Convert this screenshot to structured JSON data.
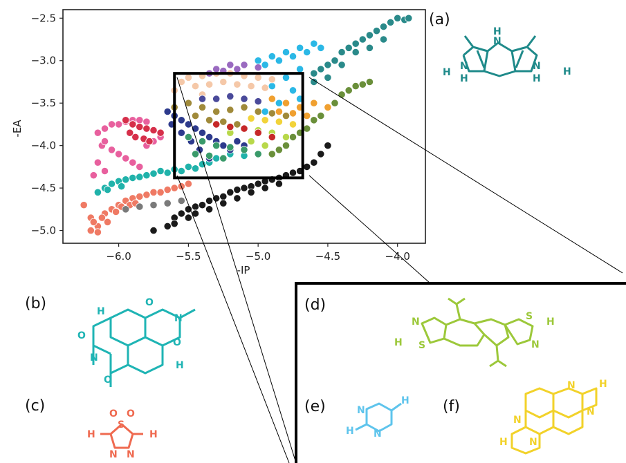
{
  "chart_data": {
    "type": "scatter",
    "title": "",
    "xlabel": "-IP",
    "ylabel": "-EA",
    "xlim": [
      -6.4,
      -3.8
    ],
    "ylim": [
      -5.15,
      -2.4
    ],
    "xticks": [
      -6.0,
      -5.5,
      -5.0,
      -4.5,
      -4.0
    ],
    "xtick_labels": [
      "−6.0",
      "−5.5",
      "−5.0",
      "−4.5",
      "−4.0"
    ],
    "yticks": [
      -2.5,
      -3.0,
      -3.5,
      -4.0,
      -4.5,
      -5.0
    ],
    "ytick_labels": [
      "−2.5",
      "−3.0",
      "−3.5",
      "−4.0",
      "−4.5",
      "−5.0"
    ],
    "grid": false,
    "legend": "none",
    "zoom_box": {
      "x": [
        -5.6,
        -4.68
      ],
      "y": [
        -4.38,
        -3.15
      ]
    },
    "series": [
      {
        "color": "#2a8a8a",
        "points": [
          [
            -4.6,
            -3.25
          ],
          [
            -4.5,
            -3.05
          ],
          [
            -4.4,
            -2.9
          ],
          [
            -4.3,
            -2.8
          ],
          [
            -4.2,
            -2.7
          ],
          [
            -4.1,
            -2.6
          ],
          [
            -4.0,
            -2.5
          ],
          [
            -3.95,
            -2.52
          ],
          [
            -4.05,
            -2.55
          ],
          [
            -4.15,
            -2.65
          ],
          [
            -4.25,
            -2.75
          ],
          [
            -4.35,
            -2.85
          ],
          [
            -4.45,
            -3.0
          ],
          [
            -4.55,
            -3.1
          ],
          [
            -4.3,
            -2.9
          ],
          [
            -4.2,
            -2.85
          ],
          [
            -4.4,
            -3.05
          ],
          [
            -4.1,
            -2.75
          ],
          [
            -4.6,
            -3.15
          ],
          [
            -4.5,
            -3.2
          ],
          [
            -3.92,
            -2.5
          ]
        ]
      },
      {
        "color": "#6a8f3a",
        "points": [
          [
            -4.2,
            -3.25
          ],
          [
            -4.3,
            -3.3
          ],
          [
            -4.4,
            -3.4
          ],
          [
            -4.5,
            -3.55
          ],
          [
            -4.6,
            -3.7
          ],
          [
            -4.7,
            -3.85
          ],
          [
            -4.8,
            -4.0
          ],
          [
            -4.9,
            -4.1
          ],
          [
            -4.45,
            -3.5
          ],
          [
            -4.55,
            -3.65
          ],
          [
            -4.35,
            -3.35
          ],
          [
            -4.25,
            -3.28
          ],
          [
            -4.65,
            -3.8
          ],
          [
            -4.75,
            -3.9
          ],
          [
            -4.85,
            -4.05
          ]
        ]
      },
      {
        "color": "#2bb8e6",
        "points": [
          [
            -5.0,
            -3.0
          ],
          [
            -4.9,
            -2.95
          ],
          [
            -4.8,
            -2.9
          ],
          [
            -4.7,
            -2.85
          ],
          [
            -4.6,
            -2.8
          ],
          [
            -4.95,
            -3.05
          ],
          [
            -4.85,
            -3.0
          ],
          [
            -4.75,
            -2.95
          ],
          [
            -4.65,
            -2.9
          ],
          [
            -4.55,
            -2.85
          ],
          [
            -4.7,
            -3.1
          ],
          [
            -4.8,
            -3.2
          ],
          [
            -4.9,
            -3.3
          ],
          [
            -4.75,
            -3.35
          ],
          [
            -4.85,
            -3.5
          ],
          [
            -4.95,
            -3.6
          ],
          [
            -4.7,
            -3.45
          ]
        ]
      },
      {
        "color": "#ef7a64",
        "points": [
          [
            -6.25,
            -4.7
          ],
          [
            -6.2,
            -4.85
          ],
          [
            -6.15,
            -4.95
          ],
          [
            -6.1,
            -4.8
          ],
          [
            -6.05,
            -4.75
          ],
          [
            -6.0,
            -4.7
          ],
          [
            -5.95,
            -4.65
          ],
          [
            -5.9,
            -4.62
          ],
          [
            -5.85,
            -4.6
          ],
          [
            -5.8,
            -4.58
          ],
          [
            -5.75,
            -4.55
          ],
          [
            -5.7,
            -4.55
          ],
          [
            -5.65,
            -4.52
          ],
          [
            -5.6,
            -4.5
          ],
          [
            -5.55,
            -4.48
          ],
          [
            -5.5,
            -4.45
          ],
          [
            -6.18,
            -4.9
          ],
          [
            -6.12,
            -4.85
          ],
          [
            -6.08,
            -4.9
          ],
          [
            -6.02,
            -4.78
          ],
          [
            -5.98,
            -4.72
          ],
          [
            -6.2,
            -5.0
          ],
          [
            -6.15,
            -5.02
          ],
          [
            -5.92,
            -4.7
          ],
          [
            -5.88,
            -4.68
          ]
        ]
      },
      {
        "color": "#20b2aa",
        "points": [
          [
            -6.1,
            -4.5
          ],
          [
            -6.05,
            -4.45
          ],
          [
            -6.0,
            -4.42
          ],
          [
            -5.95,
            -4.4
          ],
          [
            -5.9,
            -4.38
          ],
          [
            -5.85,
            -4.37
          ],
          [
            -5.8,
            -4.35
          ],
          [
            -5.75,
            -4.33
          ],
          [
            -5.7,
            -4.3
          ],
          [
            -5.65,
            -4.32
          ],
          [
            -5.6,
            -4.28
          ],
          [
            -5.55,
            -4.3
          ],
          [
            -5.5,
            -4.25
          ],
          [
            -5.45,
            -4.27
          ],
          [
            -5.4,
            -4.22
          ],
          [
            -5.35,
            -4.2
          ],
          [
            -6.15,
            -4.55
          ],
          [
            -6.08,
            -4.52
          ],
          [
            -5.98,
            -4.48
          ],
          [
            -5.3,
            -4.15
          ],
          [
            -5.2,
            -4.1
          ],
          [
            -5.1,
            -4.12
          ]
        ]
      },
      {
        "color": "#e8609e",
        "points": [
          [
            -6.15,
            -3.85
          ],
          [
            -6.1,
            -3.8
          ],
          [
            -6.05,
            -3.75
          ],
          [
            -6.0,
            -3.75
          ],
          [
            -5.95,
            -3.72
          ],
          [
            -5.9,
            -3.7
          ],
          [
            -5.85,
            -3.7
          ],
          [
            -5.8,
            -3.72
          ],
          [
            -6.12,
            -4.0
          ],
          [
            -6.05,
            -4.05
          ],
          [
            -6.0,
            -4.1
          ],
          [
            -5.95,
            -4.15
          ],
          [
            -5.9,
            -4.2
          ],
          [
            -5.85,
            -4.25
          ],
          [
            -6.15,
            -4.2
          ],
          [
            -6.1,
            -4.3
          ],
          [
            -5.8,
            -4.0
          ],
          [
            -5.75,
            -3.95
          ],
          [
            -5.7,
            -3.9
          ],
          [
            -6.18,
            -4.35
          ],
          [
            -6.1,
            -3.95
          ]
        ]
      },
      {
        "color": "#d62f4a",
        "points": [
          [
            -5.95,
            -3.7
          ],
          [
            -5.9,
            -3.75
          ],
          [
            -5.85,
            -3.78
          ],
          [
            -5.8,
            -3.8
          ],
          [
            -5.75,
            -3.82
          ],
          [
            -5.7,
            -3.85
          ],
          [
            -5.92,
            -3.85
          ],
          [
            -5.88,
            -3.9
          ],
          [
            -5.82,
            -3.92
          ],
          [
            -5.78,
            -3.95
          ]
        ]
      },
      {
        "color": "#2d3a8c",
        "points": [
          [
            -5.65,
            -3.6
          ],
          [
            -5.6,
            -3.65
          ],
          [
            -5.55,
            -3.7
          ],
          [
            -5.5,
            -3.75
          ],
          [
            -5.45,
            -3.8
          ],
          [
            -5.4,
            -3.85
          ],
          [
            -5.35,
            -3.9
          ],
          [
            -5.3,
            -3.95
          ],
          [
            -5.25,
            -4.0
          ],
          [
            -5.2,
            -4.05
          ],
          [
            -5.62,
            -3.75
          ],
          [
            -5.55,
            -3.85
          ],
          [
            -5.48,
            -3.95
          ],
          [
            -5.42,
            -4.05
          ],
          [
            -5.35,
            -4.15
          ],
          [
            -5.15,
            -3.95
          ],
          [
            -5.1,
            -4.0
          ]
        ]
      },
      {
        "color": "#1a1a1a",
        "points": [
          [
            -5.75,
            -5.0
          ],
          [
            -5.65,
            -4.95
          ],
          [
            -5.6,
            -4.85
          ],
          [
            -5.55,
            -4.8
          ],
          [
            -5.5,
            -4.75
          ],
          [
            -5.45,
            -4.72
          ],
          [
            -5.4,
            -4.7
          ],
          [
            -5.35,
            -4.65
          ],
          [
            -5.3,
            -4.62
          ],
          [
            -5.25,
            -4.6
          ],
          [
            -5.2,
            -4.55
          ],
          [
            -5.15,
            -4.52
          ],
          [
            -5.1,
            -4.5
          ],
          [
            -5.05,
            -4.48
          ],
          [
            -5.0,
            -4.45
          ],
          [
            -4.95,
            -4.42
          ],
          [
            -4.9,
            -4.4
          ],
          [
            -4.85,
            -4.38
          ],
          [
            -4.8,
            -4.35
          ],
          [
            -4.75,
            -4.32
          ],
          [
            -4.7,
            -4.3
          ],
          [
            -4.65,
            -4.25
          ],
          [
            -4.6,
            -4.2
          ],
          [
            -4.55,
            -4.1
          ],
          [
            -4.5,
            -4.0
          ],
          [
            -5.45,
            -4.8
          ],
          [
            -5.35,
            -4.75
          ],
          [
            -5.25,
            -4.68
          ],
          [
            -5.15,
            -4.62
          ],
          [
            -5.05,
            -4.55
          ],
          [
            -4.95,
            -4.5
          ],
          [
            -4.85,
            -4.45
          ],
          [
            -5.6,
            -4.92
          ],
          [
            -5.5,
            -4.85
          ]
        ]
      },
      {
        "color": "#f5c8a8",
        "points": [
          [
            -5.5,
            -3.2
          ],
          [
            -5.4,
            -3.18
          ],
          [
            -5.3,
            -3.15
          ],
          [
            -5.2,
            -3.15
          ],
          [
            -5.1,
            -3.18
          ],
          [
            -5.0,
            -3.2
          ],
          [
            -4.9,
            -3.22
          ],
          [
            -5.45,
            -3.3
          ],
          [
            -5.35,
            -3.28
          ],
          [
            -5.25,
            -3.25
          ],
          [
            -5.15,
            -3.28
          ],
          [
            -5.05,
            -3.3
          ],
          [
            -4.95,
            -3.32
          ],
          [
            -5.55,
            -3.25
          ],
          [
            -5.6,
            -3.35
          ],
          [
            -5.4,
            -3.4
          ]
        ]
      },
      {
        "color": "#9a6ac0",
        "points": [
          [
            -5.3,
            -3.1
          ],
          [
            -5.2,
            -3.05
          ],
          [
            -5.1,
            -3.05
          ],
          [
            -5.0,
            -3.08
          ],
          [
            -5.35,
            -3.15
          ],
          [
            -5.25,
            -3.12
          ],
          [
            -5.15,
            -3.1
          ]
        ]
      },
      {
        "color": "#a08a3a",
        "points": [
          [
            -5.6,
            -3.55
          ],
          [
            -5.5,
            -3.5
          ],
          [
            -5.4,
            -3.55
          ],
          [
            -5.3,
            -3.6
          ],
          [
            -5.2,
            -3.58
          ],
          [
            -5.1,
            -3.55
          ],
          [
            -5.0,
            -3.6
          ],
          [
            -4.9,
            -3.62
          ],
          [
            -4.8,
            -3.65
          ],
          [
            -5.45,
            -3.65
          ],
          [
            -5.35,
            -3.7
          ],
          [
            -5.25,
            -3.72
          ],
          [
            -5.15,
            -3.75
          ]
        ]
      },
      {
        "color": "#3a9a6a",
        "points": [
          [
            -5.5,
            -3.9
          ],
          [
            -5.4,
            -3.95
          ],
          [
            -5.3,
            -4.0
          ],
          [
            -5.2,
            -4.02
          ],
          [
            -5.1,
            -4.05
          ],
          [
            -5.0,
            -4.1
          ],
          [
            -5.45,
            -4.1
          ],
          [
            -5.35,
            -4.12
          ],
          [
            -5.25,
            -4.15
          ]
        ]
      },
      {
        "color": "#f0a030",
        "points": [
          [
            -4.9,
            -3.45
          ],
          [
            -4.8,
            -3.5
          ],
          [
            -4.7,
            -3.55
          ],
          [
            -4.6,
            -3.5
          ],
          [
            -4.5,
            -3.55
          ],
          [
            -4.85,
            -3.6
          ],
          [
            -4.75,
            -3.62
          ],
          [
            -4.65,
            -3.65
          ]
        ]
      },
      {
        "color": "#b8d84a",
        "points": [
          [
            -5.2,
            -3.85
          ],
          [
            -5.1,
            -3.8
          ],
          [
            -5.0,
            -3.82
          ],
          [
            -4.9,
            -3.85
          ],
          [
            -4.8,
            -3.9
          ],
          [
            -5.05,
            -3.95
          ],
          [
            -4.95,
            -4.0
          ]
        ]
      },
      {
        "color": "#7a7a7a",
        "points": [
          [
            -5.95,
            -4.75
          ],
          [
            -5.85,
            -4.72
          ],
          [
            -5.75,
            -4.7
          ],
          [
            -5.65,
            -4.68
          ],
          [
            -5.55,
            -4.65
          ]
        ]
      },
      {
        "color": "#c62828",
        "points": [
          [
            -5.3,
            -3.75
          ],
          [
            -5.2,
            -3.78
          ],
          [
            -5.1,
            -3.8
          ],
          [
            -5.0,
            -3.85
          ],
          [
            -4.9,
            -3.9
          ]
        ]
      },
      {
        "color": "#4a4a9a",
        "points": [
          [
            -5.4,
            -3.45
          ],
          [
            -5.3,
            -3.45
          ],
          [
            -5.2,
            -3.42
          ],
          [
            -5.1,
            -3.45
          ],
          [
            -5.0,
            -3.48
          ]
        ]
      },
      {
        "color": "#f2d33a",
        "points": [
          [
            -4.95,
            -3.7
          ],
          [
            -4.85,
            -3.72
          ],
          [
            -4.75,
            -3.75
          ],
          [
            -5.05,
            -3.68
          ]
        ]
      }
    ]
  },
  "panels": {
    "a": "(a)",
    "b": "(b)",
    "c": "(c)",
    "d": "(d)",
    "e": "(e)",
    "f": "(f)"
  },
  "molecules": {
    "a_color": "#1f8a8a",
    "b_color": "#1fb4b4",
    "c_color": "#ef6a50",
    "d_color": "#9cc83a",
    "e_color": "#5ec4ec",
    "f_color": "#f2d22a",
    "atoms": {
      "H": "H",
      "N": "N",
      "O": "O",
      "S": "S"
    }
  }
}
